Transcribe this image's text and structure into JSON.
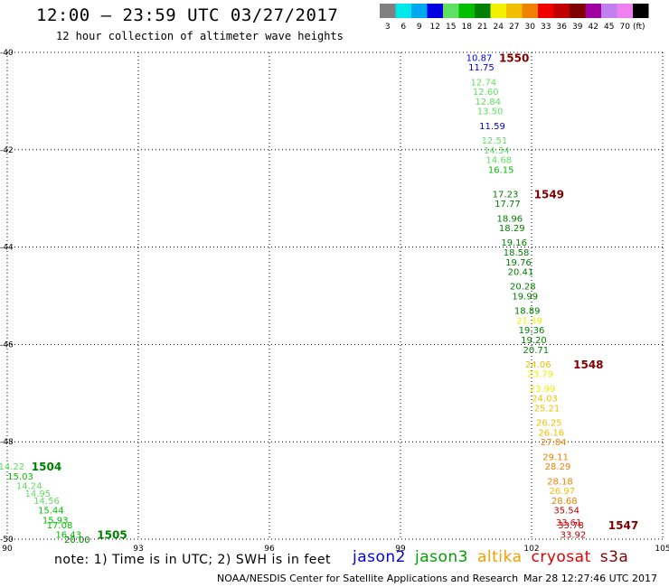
{
  "header": {
    "title": "12:00 – 23:59 UTC 03/27/2017",
    "subtitle": "12 hour collection of altimeter wave heights"
  },
  "colorbar": {
    "unit": "(ft)",
    "bins": [
      {
        "label": "3",
        "color": "#808080"
      },
      {
        "label": "6",
        "color": "#00e8e8"
      },
      {
        "label": "9",
        "color": "#00a8f0"
      },
      {
        "label": "12",
        "color": "#0000e0"
      },
      {
        "label": "15",
        "color": "#60e060"
      },
      {
        "label": "18",
        "color": "#00c000"
      },
      {
        "label": "21",
        "color": "#008000"
      },
      {
        "label": "24",
        "color": "#f0f000"
      },
      {
        "label": "27",
        "color": "#f0c000"
      },
      {
        "label": "30",
        "color": "#f08000"
      },
      {
        "label": "33",
        "color": "#f00000"
      },
      {
        "label": "36",
        "color": "#c00000"
      },
      {
        "label": "39",
        "color": "#800000"
      },
      {
        "label": "42",
        "color": "#a000a0"
      },
      {
        "label": "45",
        "color": "#c080f0"
      },
      {
        "label": "70",
        "color": "#f080f0"
      },
      {
        "label": "",
        "color": "#000000"
      }
    ]
  },
  "chart_data": {
    "type": "scatter",
    "xlim": [
      90,
      105
    ],
    "ylim": [
      -50,
      -40
    ],
    "x_ticks": [
      "90",
      "93",
      "96",
      "99",
      "102",
      "105"
    ],
    "y_ticks": [
      "-40",
      "-42",
      "-44",
      "-46",
      "-48",
      "-50"
    ],
    "grid": true,
    "series": [
      {
        "points": [
          {
            "x": 100.8,
            "y": -40.1,
            "v": "10.87",
            "color": "#0000e0"
          },
          {
            "x": 100.85,
            "y": -40.3,
            "v": "11.75",
            "color": "#0000e0"
          },
          {
            "x": 100.9,
            "y": -40.6,
            "v": "12.74",
            "color": "#60e060"
          },
          {
            "x": 100.95,
            "y": -40.8,
            "v": "12.60",
            "color": "#60e060"
          },
          {
            "x": 101.0,
            "y": -41.0,
            "v": "12.84",
            "color": "#60e060"
          },
          {
            "x": 101.05,
            "y": -41.2,
            "v": "13.50",
            "color": "#60e060"
          },
          {
            "x": 101.1,
            "y": -41.5,
            "v": "11.59",
            "color": "#0000e0"
          },
          {
            "x": 101.15,
            "y": -41.8,
            "v": "12.51",
            "color": "#60e060"
          },
          {
            "x": 101.2,
            "y": -42.0,
            "v": "14.34",
            "color": "#60e060"
          },
          {
            "x": 101.25,
            "y": -42.2,
            "v": "14.68",
            "color": "#60e060"
          },
          {
            "x": 101.3,
            "y": -42.4,
            "v": "16.15",
            "color": "#00c000"
          },
          {
            "x": 101.4,
            "y": -42.9,
            "v": "17.23",
            "color": "#008000"
          },
          {
            "x": 101.45,
            "y": -43.1,
            "v": "17.77",
            "color": "#008000"
          },
          {
            "x": 101.5,
            "y": -43.4,
            "v": "18.96",
            "color": "#008000"
          },
          {
            "x": 101.55,
            "y": -43.6,
            "v": "18.29",
            "color": "#008000"
          },
          {
            "x": 101.6,
            "y": -43.9,
            "v": "19.16",
            "color": "#008000"
          },
          {
            "x": 101.65,
            "y": -44.1,
            "v": "18.58",
            "color": "#008000"
          },
          {
            "x": 101.7,
            "y": -44.3,
            "v": "19.76",
            "color": "#008000"
          },
          {
            "x": 101.75,
            "y": -44.5,
            "v": "20.41",
            "color": "#008000"
          },
          {
            "x": 101.8,
            "y": -44.8,
            "v": "20.28",
            "color": "#008000"
          },
          {
            "x": 101.85,
            "y": -45.0,
            "v": "19.99",
            "color": "#008000"
          },
          {
            "x": 101.9,
            "y": -45.3,
            "v": "18.89",
            "color": "#008000"
          },
          {
            "x": 101.95,
            "y": -45.5,
            "v": "21.39",
            "color": "#f0f000"
          },
          {
            "x": 102.0,
            "y": -45.7,
            "v": "19.36",
            "color": "#008000"
          },
          {
            "x": 102.05,
            "y": -45.9,
            "v": "19.20",
            "color": "#008000"
          },
          {
            "x": 102.1,
            "y": -46.1,
            "v": "20.71",
            "color": "#008000"
          },
          {
            "x": 102.15,
            "y": -46.4,
            "v": "24.06",
            "color": "#f0c000"
          },
          {
            "x": 102.2,
            "y": -46.6,
            "v": "23.79",
            "color": "#f0f000"
          },
          {
            "x": 102.25,
            "y": -46.9,
            "v": "23.99",
            "color": "#f0f000"
          },
          {
            "x": 102.3,
            "y": -47.1,
            "v": "24.03",
            "color": "#f0c000"
          },
          {
            "x": 102.35,
            "y": -47.3,
            "v": "25.21",
            "color": "#f0c000"
          },
          {
            "x": 102.4,
            "y": -47.6,
            "v": "26.25",
            "color": "#f0c000"
          },
          {
            "x": 102.45,
            "y": -47.8,
            "v": "26.16",
            "color": "#f0c000"
          },
          {
            "x": 102.5,
            "y": -48.0,
            "v": "27.84",
            "color": "#f08000"
          },
          {
            "x": 102.55,
            "y": -48.3,
            "v": "29.11",
            "color": "#f08000"
          },
          {
            "x": 102.6,
            "y": -48.5,
            "v": "28.29",
            "color": "#f08000"
          },
          {
            "x": 102.65,
            "y": -48.8,
            "v": "28.18",
            "color": "#f08000"
          },
          {
            "x": 102.7,
            "y": -49.0,
            "v": "26.97",
            "color": "#f0c000"
          },
          {
            "x": 102.75,
            "y": -49.2,
            "v": "28.68",
            "color": "#f08000"
          },
          {
            "x": 102.8,
            "y": -49.4,
            "v": "35.54",
            "color": "#c00000"
          },
          {
            "x": 102.85,
            "y": -49.65,
            "v": "33.61",
            "color": "#f00000"
          },
          {
            "x": 102.9,
            "y": -49.7,
            "v": "33.78",
            "color": "#c00000"
          },
          {
            "x": 102.95,
            "y": -49.9,
            "v": "33.92",
            "color": "#c00000"
          },
          {
            "x": 90.1,
            "y": -48.5,
            "v": "14.22",
            "color": "#60e060"
          },
          {
            "x": 90.3,
            "y": -48.7,
            "v": "15.03",
            "color": "#00c000"
          },
          {
            "x": 90.5,
            "y": -48.9,
            "v": "14.24",
            "color": "#60e060"
          },
          {
            "x": 90.7,
            "y": -49.05,
            "v": "14.95",
            "color": "#60e060"
          },
          {
            "x": 90.9,
            "y": -49.2,
            "v": "14.56",
            "color": "#60e060"
          },
          {
            "x": 91.0,
            "y": -49.4,
            "v": "15.44",
            "color": "#00c000"
          },
          {
            "x": 91.1,
            "y": -49.6,
            "v": "15.93",
            "color": "#00c000"
          },
          {
            "x": 91.2,
            "y": -49.7,
            "v": "17.08",
            "color": "#00c000"
          },
          {
            "x": 91.4,
            "y": -49.9,
            "v": "16.43",
            "color": "#00c000"
          },
          {
            "x": 91.6,
            "y": -50.0,
            "v": "20.00",
            "color": "#008000"
          }
        ]
      }
    ],
    "time_labels": [
      {
        "text": "1550",
        "x": 101.6,
        "y": -40.1,
        "color": "#800000"
      },
      {
        "text": "1549",
        "x": 102.4,
        "y": -42.9,
        "color": "#800000"
      },
      {
        "text": "1548",
        "x": 103.3,
        "y": -46.4,
        "color": "#800000"
      },
      {
        "text": "1547",
        "x": 104.1,
        "y": -49.7,
        "color": "#800000"
      },
      {
        "text": "1504",
        "x": 90.9,
        "y": -48.5,
        "color": "#008000"
      },
      {
        "text": "1505",
        "x": 92.4,
        "y": -49.9,
        "color": "#008000"
      }
    ]
  },
  "notes": "note: 1) Time is in UTC; 2) SWH is in feet",
  "legend": [
    {
      "label": "jason2",
      "color": "#0000e0"
    },
    {
      "label": "jason3",
      "color": "#00a000"
    },
    {
      "label": "altika",
      "color": "#f0a000"
    },
    {
      "label": "cryosat",
      "color": "#e00000"
    },
    {
      "label": "s3a",
      "color": "#800000"
    }
  ],
  "footer": {
    "credit": "NOAA/NESDIS Center for Satellite Applications and Research",
    "timestamp": "Mar 28 12:27:46 UTC 2017"
  }
}
